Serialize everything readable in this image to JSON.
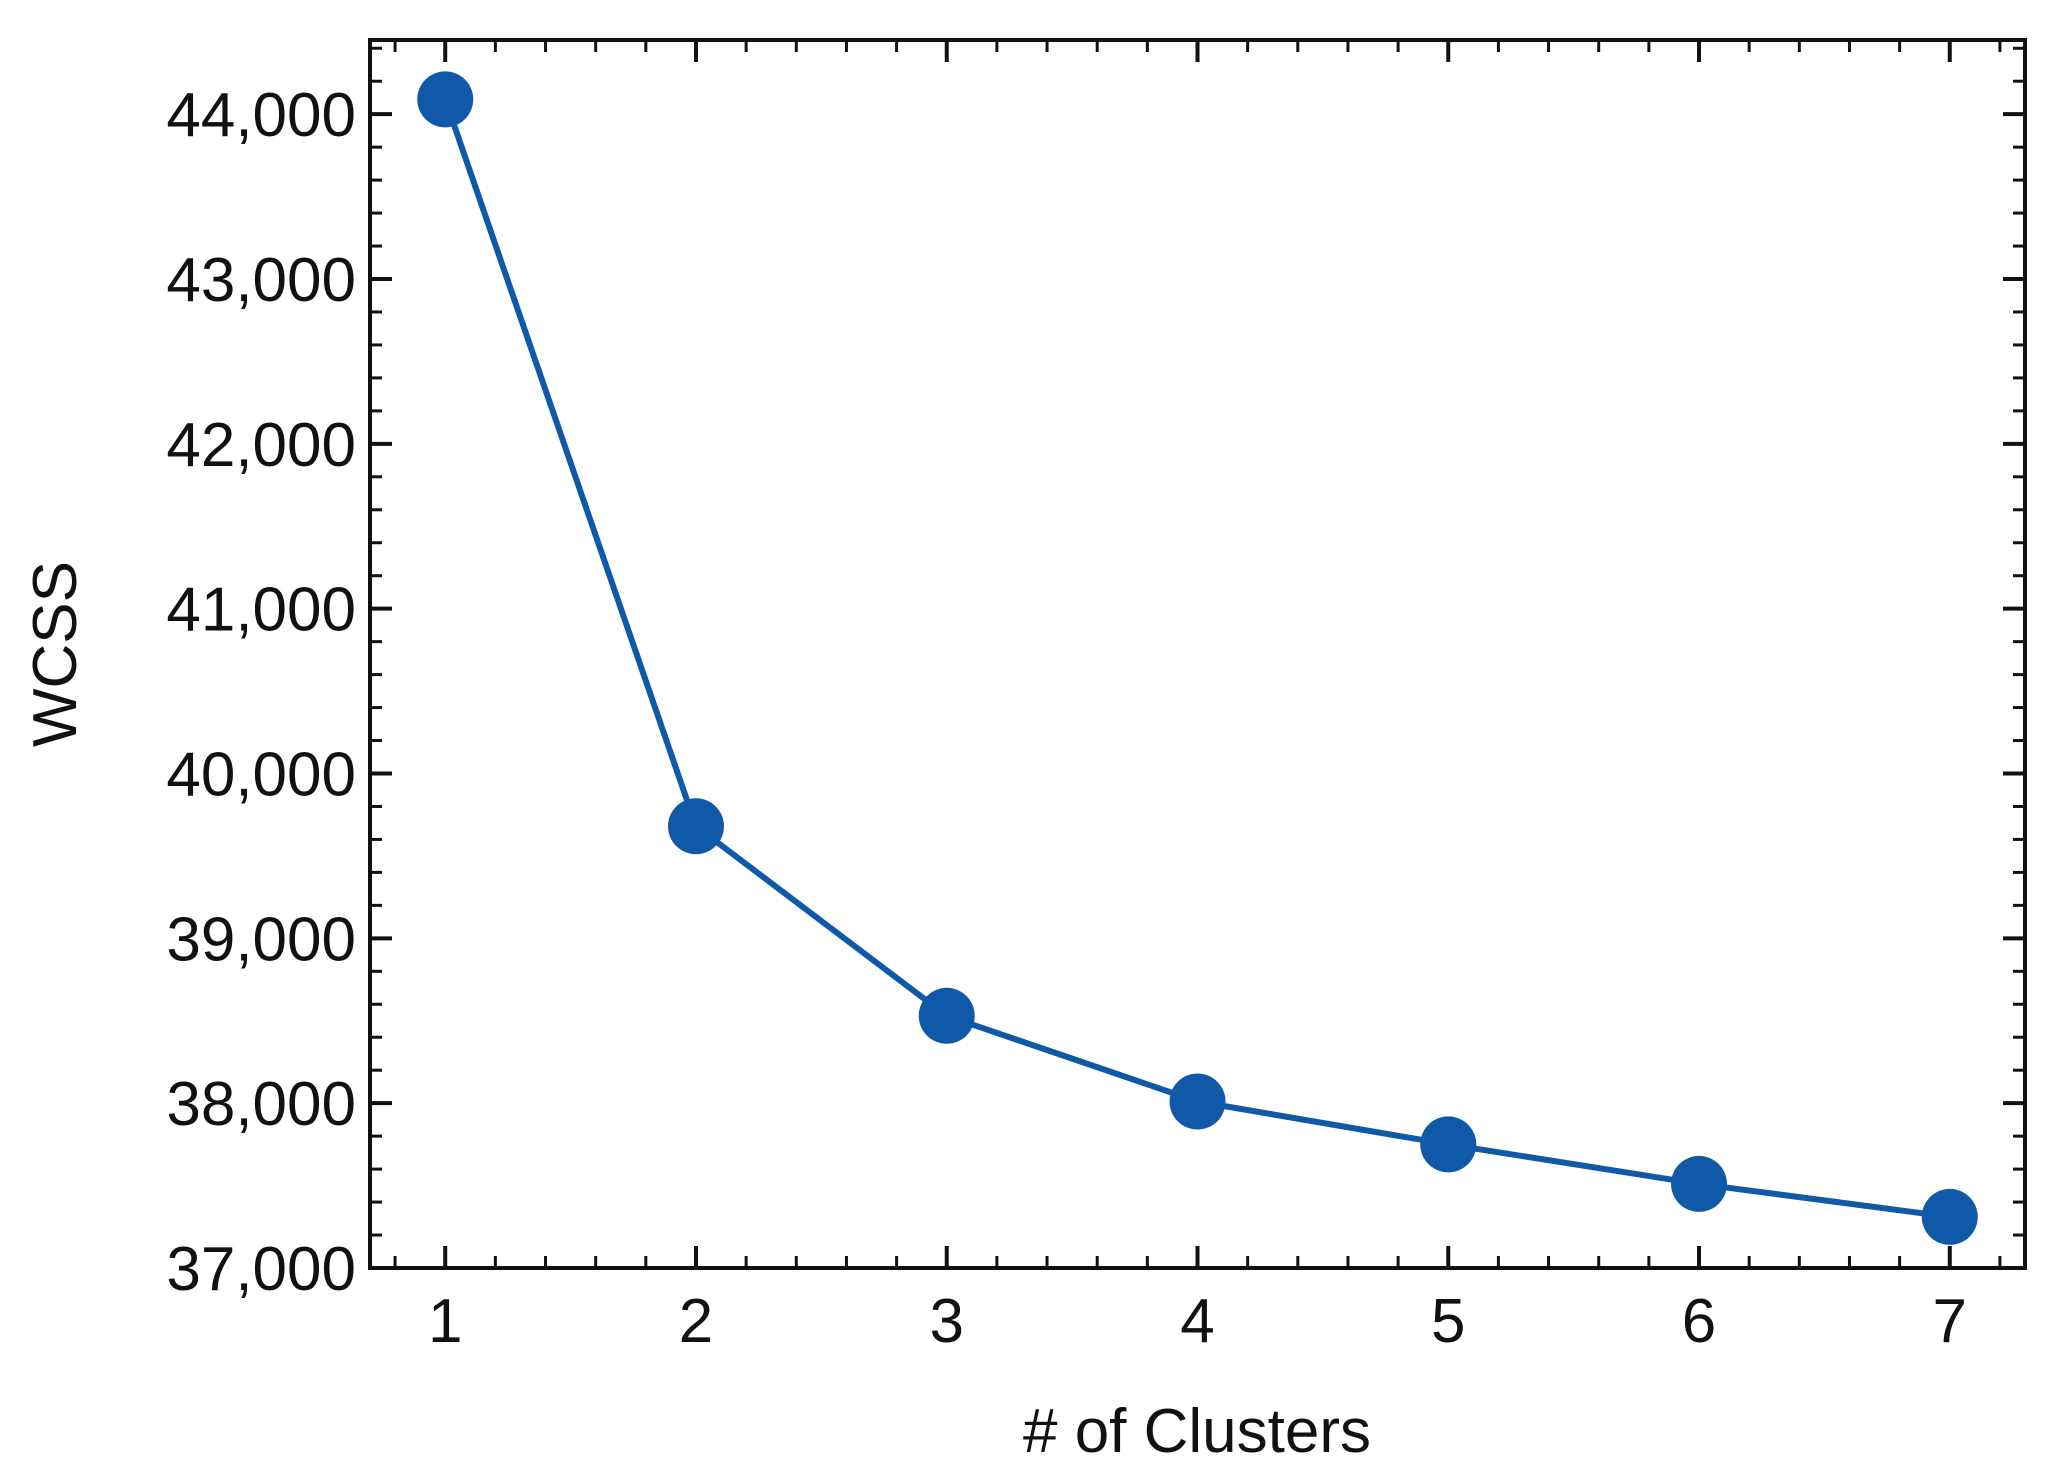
{
  "chart_data": {
    "type": "line",
    "title": "",
    "xlabel": "# of Clusters",
    "ylabel": "WCSS",
    "x": [
      1,
      2,
      3,
      4,
      5,
      6,
      7
    ],
    "series": [
      {
        "values": [
          44090,
          39680,
          38530,
          38010,
          37750,
          37510,
          37310
        ]
      }
    ],
    "xlim": [
      0.7,
      7.3
    ],
    "ylim": [
      37000,
      44450
    ],
    "xticks": [
      1,
      2,
      3,
      4,
      5,
      6,
      7
    ],
    "xtick_labels": [
      "1",
      "2",
      "3",
      "4",
      "5",
      "6",
      "7"
    ],
    "yticks": [
      37000,
      38000,
      39000,
      40000,
      41000,
      42000,
      43000,
      44000
    ],
    "ytick_labels": [
      "37,000",
      "38,000",
      "39,000",
      "40,000",
      "41,000",
      "42,000",
      "43,000",
      "44,000"
    ],
    "grid": false,
    "legend": "none",
    "line_color": "#1059a8",
    "marker": "circle"
  }
}
